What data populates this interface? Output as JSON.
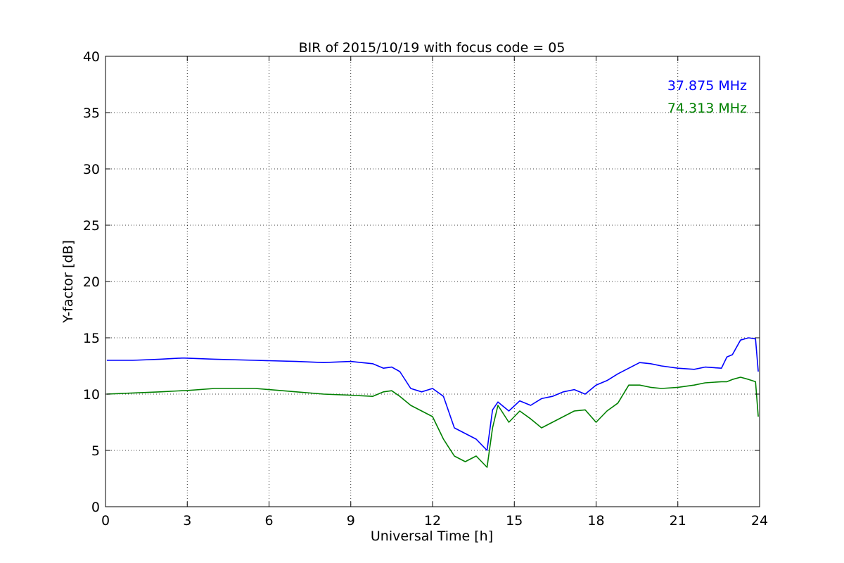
{
  "chart_data": {
    "type": "line",
    "title": "BIR of 2015/10/19 with focus code = 05",
    "xlabel": "Universal Time [h]",
    "ylabel": "Y-factor [dB]",
    "xlim": [
      0,
      24
    ],
    "ylim": [
      0,
      40
    ],
    "xticks": [
      0,
      3,
      6,
      9,
      12,
      15,
      18,
      21,
      24
    ],
    "yticks": [
      0,
      5,
      10,
      15,
      20,
      25,
      30,
      35,
      40
    ],
    "grid": true,
    "legend_placement": "top-right",
    "series": [
      {
        "name": "37.875 MHz",
        "color": "#0000ff",
        "x": [
          0.05,
          1.0,
          2.0,
          2.8,
          2.9,
          4.0,
          5.5,
          7.0,
          8.0,
          9.0,
          9.8,
          10.2,
          10.5,
          10.8,
          11.2,
          11.6,
          12.0,
          12.4,
          12.8,
          13.2,
          13.6,
          14.0,
          14.2,
          14.4,
          14.8,
          15.2,
          15.6,
          16.0,
          16.4,
          16.8,
          17.2,
          17.6,
          18.0,
          18.4,
          18.8,
          19.2,
          19.6,
          20.0,
          20.4,
          21.0,
          21.6,
          22.0,
          22.6,
          22.8,
          23.0,
          23.3,
          23.6,
          23.85,
          23.95
        ],
        "y": [
          13.0,
          13.0,
          13.1,
          13.2,
          13.2,
          13.1,
          13.0,
          12.9,
          12.8,
          12.9,
          12.7,
          12.3,
          12.4,
          12.0,
          10.5,
          10.2,
          10.5,
          9.8,
          7.0,
          6.5,
          6.0,
          5.0,
          8.6,
          9.3,
          8.5,
          9.4,
          9.0,
          9.6,
          9.8,
          10.2,
          10.4,
          10.0,
          10.8,
          11.2,
          11.8,
          12.3,
          12.8,
          12.7,
          12.5,
          12.3,
          12.2,
          12.4,
          12.3,
          13.3,
          13.5,
          14.8,
          15.0,
          14.9,
          12.0
        ]
      },
      {
        "name": "74.313 MHz",
        "color": "#008000",
        "x": [
          0.05,
          1.0,
          2.0,
          2.8,
          2.9,
          4.0,
          5.5,
          7.0,
          8.0,
          9.0,
          9.8,
          10.2,
          10.5,
          10.8,
          11.2,
          11.6,
          12.0,
          12.4,
          12.8,
          13.2,
          13.6,
          14.0,
          14.2,
          14.4,
          14.8,
          15.2,
          15.6,
          16.0,
          16.4,
          16.8,
          17.2,
          17.6,
          18.0,
          18.4,
          18.8,
          19.2,
          19.6,
          20.0,
          20.4,
          21.0,
          21.6,
          22.0,
          22.6,
          22.8,
          23.0,
          23.3,
          23.6,
          23.85,
          23.95
        ],
        "y": [
          10.0,
          10.1,
          10.2,
          10.3,
          10.3,
          10.5,
          10.5,
          10.2,
          10.0,
          9.9,
          9.8,
          10.2,
          10.3,
          9.8,
          9.0,
          8.5,
          8.0,
          6.0,
          4.5,
          4.0,
          4.5,
          3.5,
          7.0,
          9.0,
          7.5,
          8.5,
          7.8,
          7.0,
          7.5,
          8.0,
          8.5,
          8.6,
          7.5,
          8.5,
          9.2,
          10.8,
          10.8,
          10.6,
          10.5,
          10.6,
          10.8,
          11.0,
          11.1,
          11.1,
          11.3,
          11.5,
          11.3,
          11.1,
          8.0
        ]
      }
    ]
  }
}
